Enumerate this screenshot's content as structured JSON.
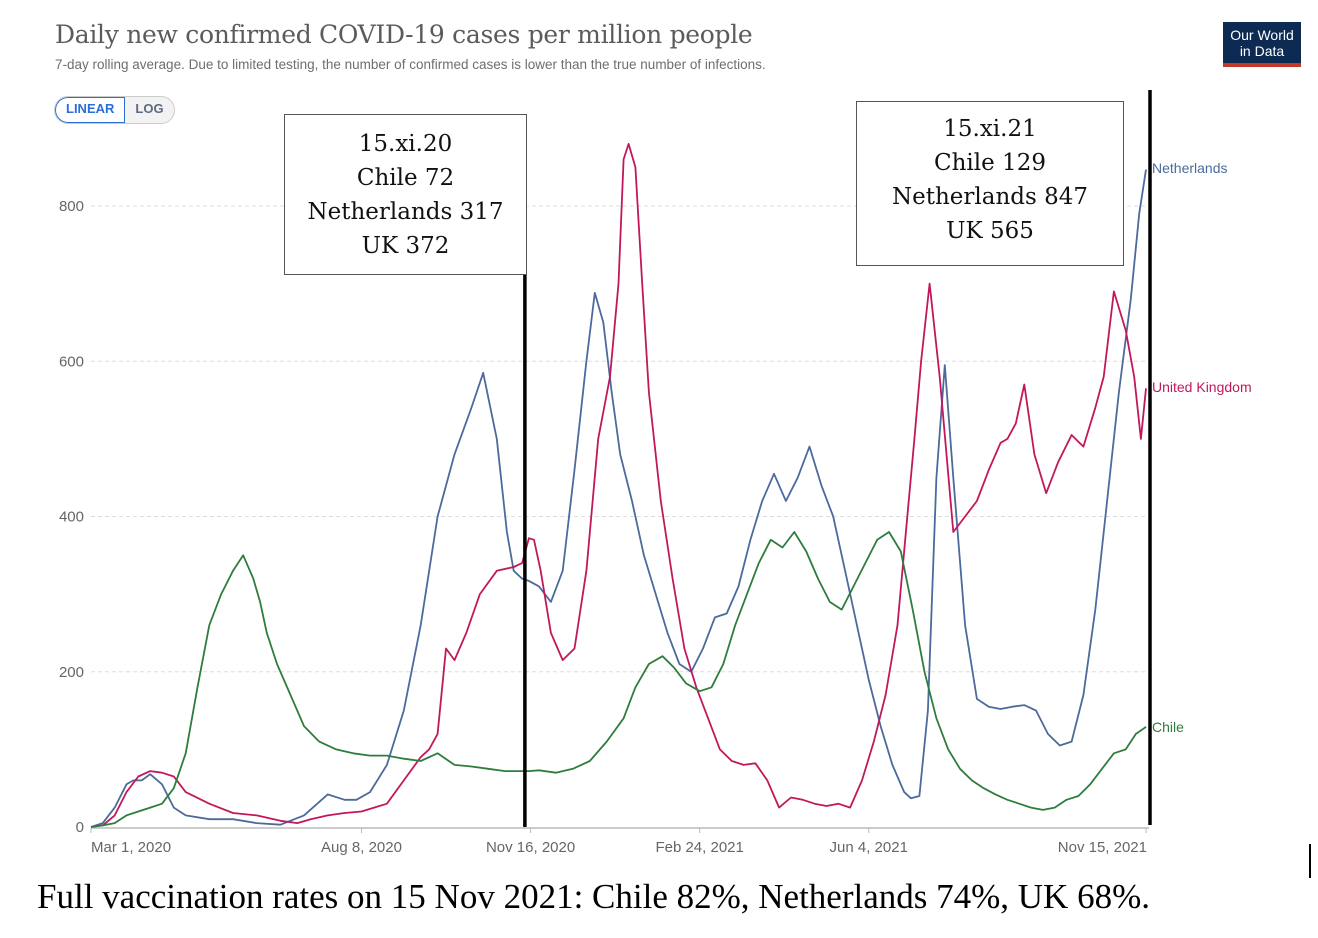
{
  "header": {
    "title": "Daily new confirmed COVID-19 cases per million people",
    "subtitle": "7-day rolling average. Due to limited testing, the number of confirmed cases is lower than the true number of infections.",
    "logo_line1": "Our World",
    "logo_line2": "in Data"
  },
  "scale_toggle": {
    "linear_label": "LINEAR",
    "log_label": "LOG",
    "selected": "LINEAR"
  },
  "annotations": [
    {
      "lines": [
        "15.xi.20",
        "Chile 72",
        "Netherlands 317",
        "UK 372"
      ]
    },
    {
      "lines": [
        "15.xi.21",
        "Chile 129",
        "Netherlands 847",
        "UK 565"
      ]
    }
  ],
  "caption": "Full vaccination rates on 15 Nov 2021: Chile 82%, Netherlands 74%, UK 68%.",
  "colors": {
    "netherlands": "#4c6a9c",
    "united_kingdom": "#c2185b",
    "chile": "#2e7d3e",
    "grid": "#dddddd",
    "axis_text": "#666666"
  },
  "chart_data": {
    "type": "line",
    "title": "Daily new confirmed COVID-19 cases per million people",
    "subtitle": "7-day rolling average. Due to limited testing, the number of confirmed cases is lower than the true number of infections.",
    "xlabel": "",
    "ylabel": "",
    "x_unit": "days since Mar 1, 2020",
    "xlim": [
      0,
      624
    ],
    "ylim": [
      0,
      900
    ],
    "yticks": [
      0,
      200,
      400,
      600,
      800
    ],
    "ytick_labels": [
      "0",
      "200",
      "400",
      "600",
      "800"
    ],
    "xticks": [
      0,
      160,
      260,
      360,
      460,
      624
    ],
    "xtick_labels": [
      "Mar 1, 2020",
      "Aug 8, 2020",
      "Nov 16, 2020",
      "Feb 24, 2021",
      "Jun 4, 2021",
      "Nov 15, 2021"
    ],
    "grid": true,
    "legend": "inline-right",
    "vertical_markers": [
      {
        "x": 259,
        "label": "15.xi.20"
      },
      {
        "x": 624,
        "label": "15.xi.21"
      }
    ],
    "series": [
      {
        "name": "Netherlands",
        "color_key": "netherlands",
        "x": [
          0,
          7,
          14,
          21,
          25,
          30,
          35,
          42,
          49,
          56,
          70,
          84,
          98,
          112,
          126,
          140,
          150,
          157,
          165,
          175,
          185,
          195,
          205,
          215,
          225,
          232,
          240,
          246,
          250,
          255,
          259,
          265,
          272,
          279,
          286,
          293,
          298,
          303,
          308,
          313,
          320,
          327,
          334,
          341,
          348,
          355,
          362,
          369,
          376,
          383,
          390,
          397,
          404,
          411,
          418,
          425,
          432,
          439,
          446,
          453,
          460,
          467,
          474,
          481,
          485,
          490,
          495,
          500,
          505,
          510,
          517,
          524,
          531,
          538,
          545,
          552,
          559,
          566,
          573,
          580,
          587,
          594,
          601,
          608,
          615,
          620,
          624
        ],
        "values": [
          0,
          5,
          25,
          55,
          60,
          60,
          68,
          55,
          25,
          15,
          10,
          10,
          5,
          3,
          15,
          42,
          35,
          35,
          45,
          80,
          150,
          260,
          400,
          480,
          540,
          585,
          500,
          380,
          330,
          320,
          317,
          310,
          290,
          330,
          460,
          600,
          688,
          650,
          560,
          480,
          420,
          350,
          300,
          250,
          210,
          200,
          230,
          270,
          275,
          310,
          370,
          420,
          455,
          420,
          450,
          490,
          440,
          400,
          330,
          260,
          190,
          130,
          80,
          45,
          37,
          40,
          150,
          450,
          595,
          450,
          260,
          165,
          155,
          152,
          155,
          157,
          150,
          120,
          105,
          110,
          170,
          280,
          420,
          560,
          680,
          790,
          847
        ]
      },
      {
        "name": "United Kingdom",
        "color_key": "united_kingdom",
        "x": [
          0,
          7,
          14,
          21,
          28,
          35,
          42,
          49,
          56,
          70,
          84,
          98,
          112,
          122,
          130,
          140,
          150,
          160,
          175,
          185,
          195,
          200,
          205,
          210,
          215,
          222,
          230,
          240,
          250,
          255,
          259,
          262,
          266,
          272,
          279,
          286,
          293,
          300,
          307,
          312,
          315,
          318,
          322,
          326,
          330,
          337,
          344,
          351,
          358,
          365,
          372,
          379,
          386,
          393,
          400,
          407,
          414,
          421,
          428,
          435,
          442,
          449,
          456,
          463,
          470,
          477,
          482,
          487,
          491,
          496,
          502,
          510,
          517,
          524,
          531,
          538,
          542,
          547,
          552,
          558,
          565,
          572,
          580,
          587,
          594,
          599,
          605,
          612,
          617,
          621,
          624
        ],
        "values": [
          0,
          2,
          15,
          45,
          65,
          72,
          70,
          65,
          45,
          30,
          18,
          15,
          8,
          5,
          10,
          15,
          18,
          20,
          30,
          60,
          90,
          100,
          120,
          230,
          215,
          250,
          300,
          330,
          335,
          340,
          372,
          370,
          330,
          250,
          215,
          230,
          330,
          500,
          580,
          700,
          860,
          880,
          850,
          700,
          560,
          420,
          320,
          230,
          180,
          140,
          100,
          85,
          80,
          82,
          60,
          25,
          38,
          35,
          30,
          27,
          30,
          25,
          60,
          110,
          170,
          260,
          380,
          500,
          600,
          700,
          580,
          380,
          400,
          420,
          460,
          495,
          500,
          520,
          570,
          480,
          430,
          470,
          505,
          490,
          540,
          580,
          690,
          640,
          580,
          500,
          565
        ]
      },
      {
        "name": "Chile",
        "color_key": "chile",
        "x": [
          0,
          7,
          14,
          21,
          28,
          35,
          42,
          49,
          56,
          63,
          70,
          77,
          84,
          90,
          96,
          100,
          104,
          110,
          118,
          126,
          135,
          145,
          155,
          165,
          175,
          185,
          195,
          205,
          215,
          225,
          235,
          245,
          255,
          259,
          265,
          275,
          285,
          295,
          305,
          315,
          322,
          330,
          338,
          345,
          352,
          360,
          367,
          374,
          381,
          388,
          395,
          402,
          409,
          416,
          423,
          430,
          437,
          444,
          451,
          458,
          465,
          472,
          479,
          486,
          493,
          500,
          507,
          514,
          521,
          528,
          535,
          542,
          549,
          556,
          563,
          570,
          577,
          584,
          591,
          598,
          605,
          612,
          618,
          624
        ],
        "values": [
          0,
          2,
          5,
          15,
          20,
          25,
          30,
          50,
          95,
          180,
          260,
          300,
          330,
          350,
          320,
          290,
          250,
          210,
          170,
          130,
          110,
          100,
          95,
          92,
          92,
          88,
          85,
          95,
          80,
          78,
          75,
          72,
          72,
          72,
          73,
          70,
          75,
          85,
          110,
          140,
          180,
          210,
          220,
          205,
          185,
          175,
          180,
          210,
          260,
          300,
          340,
          370,
          360,
          380,
          355,
          320,
          290,
          280,
          310,
          340,
          370,
          380,
          355,
          280,
          200,
          140,
          100,
          75,
          60,
          50,
          42,
          35,
          30,
          25,
          22,
          25,
          35,
          40,
          55,
          75,
          95,
          100,
          120,
          129
        ]
      }
    ]
  }
}
